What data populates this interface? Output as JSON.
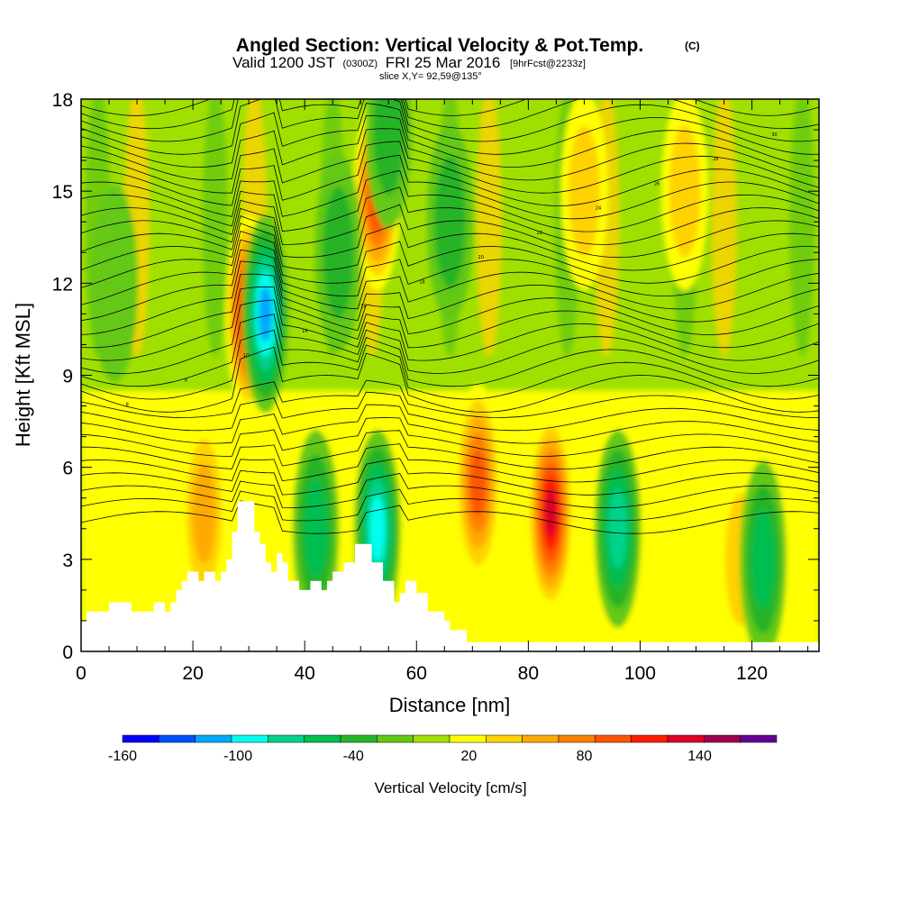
{
  "title": {
    "main": "Angled Section: Vertical Velocity & Pot.Temp.",
    "copyright": "(C)",
    "valid_prefix": "Valid 1200 JST",
    "valid_utc": "(0300Z)",
    "valid_date": "FRI 25 Mar 2016",
    "forecast": "[9hrFcst@2233z]",
    "slice": "slice X,Y= 92,59@135°"
  },
  "chart_data": {
    "type": "heatmap",
    "xlabel": "Distance [nm]",
    "ylabel": "Height [Kft MSL]",
    "xlim": [
      0,
      132
    ],
    "ylim": [
      0,
      18
    ],
    "x_ticks": [
      0,
      20,
      40,
      60,
      80,
      100,
      120
    ],
    "y_ticks": [
      0,
      3,
      6,
      9,
      12,
      15,
      18
    ],
    "colorbar": {
      "label": "Vertical Velocity [cm/s]",
      "levels": [
        -160,
        -140,
        -120,
        -100,
        -80,
        -60,
        -40,
        -20,
        0,
        20,
        40,
        60,
        80,
        100,
        120,
        140,
        160,
        180
      ],
      "tick_labels": [
        -160,
        -100,
        -40,
        20,
        80,
        140
      ],
      "colors": [
        "#0000ff",
        "#0050ff",
        "#00a8ff",
        "#00ffee",
        "#00d28c",
        "#00be50",
        "#28b428",
        "#64c814",
        "#a0e000",
        "#ffff00",
        "#ffd200",
        "#ffaa00",
        "#ff8000",
        "#ff5500",
        "#ff1e00",
        "#dc0028",
        "#a00050",
        "#640096"
      ]
    },
    "terrain_heights_kft": [
      [
        0,
        1.0
      ],
      [
        1,
        1.0
      ],
      [
        1,
        1.3
      ],
      [
        5,
        1.3
      ],
      [
        5,
        1.6
      ],
      [
        9,
        1.6
      ],
      [
        9,
        1.3
      ],
      [
        13,
        1.3
      ],
      [
        13,
        1.6
      ],
      [
        15,
        1.6
      ],
      [
        15,
        1.3
      ],
      [
        16,
        1.3
      ],
      [
        16,
        1.6
      ],
      [
        17,
        1.6
      ],
      [
        17,
        2.0
      ],
      [
        18,
        2.0
      ],
      [
        18,
        2.3
      ],
      [
        19,
        2.3
      ],
      [
        19,
        2.6
      ],
      [
        21,
        2.6
      ],
      [
        21,
        2.3
      ],
      [
        22,
        2.3
      ],
      [
        22,
        2.6
      ],
      [
        24,
        2.6
      ],
      [
        24,
        2.3
      ],
      [
        25,
        2.3
      ],
      [
        25,
        2.6
      ],
      [
        26,
        2.6
      ],
      [
        26,
        3.0
      ],
      [
        27,
        3.0
      ],
      [
        27,
        3.9
      ],
      [
        28,
        3.9
      ],
      [
        28,
        4.9
      ],
      [
        31,
        4.9
      ],
      [
        31,
        3.9
      ],
      [
        32,
        3.9
      ],
      [
        32,
        3.5
      ],
      [
        33,
        3.5
      ],
      [
        33,
        2.9
      ],
      [
        34,
        2.9
      ],
      [
        34,
        2.6
      ],
      [
        35,
        2.6
      ],
      [
        35,
        3.2
      ],
      [
        36,
        3.2
      ],
      [
        36,
        2.9
      ],
      [
        37,
        2.9
      ],
      [
        37,
        2.3
      ],
      [
        38,
        2.3
      ],
      [
        38,
        2.3
      ],
      [
        39,
        2.3
      ],
      [
        39,
        2.0
      ],
      [
        41,
        2.0
      ],
      [
        41,
        2.3
      ],
      [
        43,
        2.3
      ],
      [
        43,
        2.0
      ],
      [
        44,
        2.0
      ],
      [
        44,
        2.3
      ],
      [
        45,
        2.3
      ],
      [
        45,
        2.6
      ],
      [
        47,
        2.6
      ],
      [
        47,
        2.9
      ],
      [
        49,
        2.9
      ],
      [
        49,
        3.5
      ],
      [
        51,
        3.5
      ],
      [
        51,
        3.5
      ],
      [
        52,
        3.5
      ],
      [
        52,
        2.9
      ],
      [
        54,
        2.9
      ],
      [
        54,
        2.3
      ],
      [
        56,
        2.3
      ],
      [
        56,
        1.6
      ],
      [
        57,
        1.6
      ],
      [
        57,
        1.9
      ],
      [
        58,
        1.9
      ],
      [
        58,
        2.3
      ],
      [
        60,
        2.3
      ],
      [
        60,
        1.9
      ],
      [
        62,
        1.9
      ],
      [
        62,
        1.3
      ],
      [
        65,
        1.3
      ],
      [
        65,
        1.0
      ],
      [
        66,
        1.0
      ],
      [
        66,
        0.7
      ],
      [
        69,
        0.7
      ],
      [
        69,
        0.3
      ],
      [
        132,
        0.3
      ]
    ],
    "velocity_features_cm_s": [
      {
        "x": 30,
        "z": 11,
        "value": 140
      },
      {
        "x": 33,
        "z": 11,
        "value": -120
      },
      {
        "x": 53,
        "z": 15,
        "value": 120
      },
      {
        "x": 55,
        "z": 17,
        "value": -40
      },
      {
        "x": 71,
        "z": 5.5,
        "value": 110
      },
      {
        "x": 84,
        "z": 4.5,
        "value": 140
      },
      {
        "x": 96,
        "z": 4,
        "value": -80
      },
      {
        "x": 42,
        "z": 4,
        "value": -70
      },
      {
        "x": 53,
        "z": 4,
        "value": -100
      },
      {
        "x": 108,
        "z": 15,
        "value": 50
      },
      {
        "x": 90,
        "z": 15,
        "value": 45
      },
      {
        "x": 22,
        "z": 4.5,
        "value": 60
      },
      {
        "x": 118,
        "z": 3,
        "value": 50
      },
      {
        "x": 6,
        "z": 12,
        "value": -30
      },
      {
        "x": 46,
        "z": 13,
        "value": -40
      },
      {
        "x": 66,
        "z": 14,
        "value": -50
      },
      {
        "x": 122,
        "z": 3,
        "value": -60
      }
    ],
    "pot_temp_contour_labels": [
      "8",
      "8",
      "10",
      "14",
      "16",
      "18",
      "20",
      "22",
      "24",
      "26",
      "28",
      "30"
    ]
  }
}
